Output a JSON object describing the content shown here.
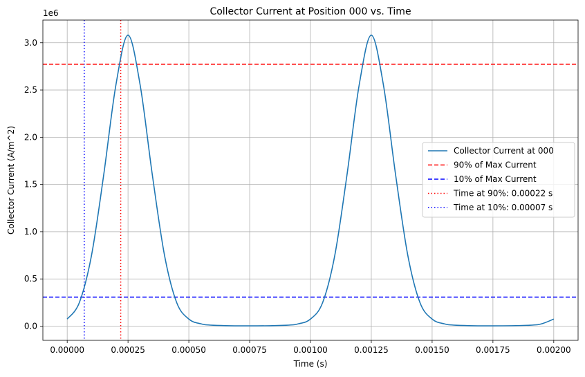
{
  "chart_data": {
    "type": "line",
    "title": "Collector Current at Position 000 vs. Time",
    "xlabel": "Time (s)",
    "ylabel": "Collector Current (A/m^2)",
    "y_offset_label": "1e6",
    "xlim": [
      -0.0001,
      0.0021
    ],
    "ylim": [
      -0.15,
      3.24
    ],
    "y_scale_note": "y values in units of 1e6",
    "grid": true,
    "legend_position": "center-right",
    "x_ticks": [
      0.0,
      0.00025,
      0.0005,
      0.00075,
      0.001,
      0.00125,
      0.0015,
      0.00175,
      0.002
    ],
    "x_tick_labels": [
      "0.00000",
      "0.00025",
      "0.00050",
      "0.00075",
      "0.00100",
      "0.00125",
      "0.00150",
      "0.00175",
      "0.00200"
    ],
    "y_ticks": [
      0.0,
      0.5,
      1.0,
      1.5,
      2.0,
      2.5,
      3.0
    ],
    "y_tick_labels": [
      "0.0",
      "0.5",
      "1.0",
      "1.5",
      "2.0",
      "2.5",
      "3.0"
    ],
    "series": [
      {
        "name": "Collector Current at 000",
        "color": "#1f77b4",
        "style": "solid",
        "x": [
          0.0,
          5e-05,
          0.0001,
          0.00015,
          0.0002,
          0.00025,
          0.0003,
          0.00035,
          0.0004,
          0.00045,
          0.0005,
          0.00055,
          0.0006,
          0.00075,
          0.0009,
          0.00095,
          0.001,
          0.00105,
          0.0011,
          0.00115,
          0.0012,
          0.00125,
          0.0013,
          0.00135,
          0.0014,
          0.00145,
          0.0015,
          0.00155,
          0.0016,
          0.00175,
          0.0019,
          0.00195,
          0.002
        ],
        "y": [
          0.075,
          0.25,
          0.75,
          1.6,
          2.55,
          3.08,
          2.55,
          1.6,
          0.75,
          0.25,
          0.075,
          0.025,
          0.01,
          0.003,
          0.01,
          0.025,
          0.075,
          0.25,
          0.75,
          1.6,
          2.55,
          3.08,
          2.55,
          1.6,
          0.75,
          0.25,
          0.075,
          0.025,
          0.01,
          0.003,
          0.01,
          0.025,
          0.075
        ]
      }
    ],
    "reference_lines": [
      {
        "name": "90% of Max Current",
        "orientation": "horizontal",
        "value": 2.772,
        "color": "#ff0000",
        "style": "dashed"
      },
      {
        "name": "10% of Max Current",
        "orientation": "horizontal",
        "value": 0.308,
        "color": "#0000ff",
        "style": "dashed"
      },
      {
        "name": "Time at 90%: 0.00022 s",
        "orientation": "vertical",
        "value": 0.00022,
        "color": "#ff0000",
        "style": "dotted"
      },
      {
        "name": "Time at 10%: 0.00007 s",
        "orientation": "vertical",
        "value": 7e-05,
        "color": "#0000ff",
        "style": "dotted"
      }
    ]
  }
}
